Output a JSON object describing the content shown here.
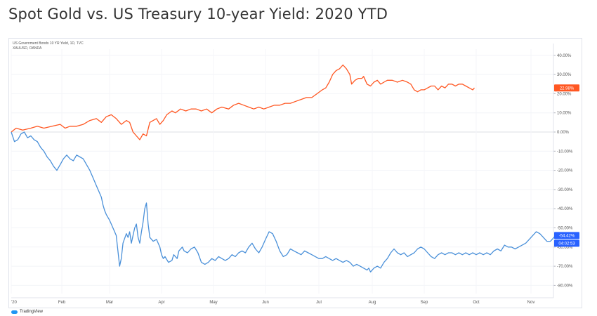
{
  "page": {
    "title": "Spot Gold vs. US Treasury 10-year Yield: 2020 YTD"
  },
  "legend": {
    "line1": "US Government Bonds 10 YR Yield, 1D, TVC",
    "line2": "XAUUSD, OANDA"
  },
  "brand": {
    "label": "TradingView",
    "icon": "tradingview-logo-icon"
  },
  "colors": {
    "gold": "#ff5722",
    "yield": "#4a90d9",
    "grid": "#f0f3fa",
    "axis_text": "#555555"
  },
  "chart_data": {
    "type": "line",
    "title": "Spot Gold vs. US Treasury 10-year Yield: 2020 YTD",
    "xlabel": "",
    "ylabel": "",
    "x_ticks": [
      "'20",
      "Feb",
      "Mar",
      "Apr",
      "May",
      "Jun",
      "Jul",
      "Aug",
      "Sep",
      "Oct",
      "Nov"
    ],
    "y_ticks": [
      "40.00%",
      "30.00%",
      "20.00%",
      "10.00%",
      "0.00%",
      "-10.00%",
      "-20.00%",
      "-30.00%",
      "-40.00%",
      "-50.00%",
      "-60.00%",
      "-70.00%",
      "-80.00%"
    ],
    "ylim": [
      -82,
      44
    ],
    "x_domain_days": [
      0,
      310
    ],
    "grid": true,
    "badges": {
      "gold_last": "22.98%",
      "yield_last": "-54.42%",
      "countdown": "04:02:53"
    },
    "series": [
      {
        "name": "XAUUSD, OANDA",
        "color": "#ff5722",
        "points": [
          [
            0,
            0
          ],
          [
            3,
            2
          ],
          [
            7,
            1
          ],
          [
            12,
            2
          ],
          [
            16,
            3
          ],
          [
            20,
            2
          ],
          [
            25,
            3
          ],
          [
            30,
            4
          ],
          [
            33,
            2
          ],
          [
            36,
            3
          ],
          [
            40,
            3
          ],
          [
            44,
            4
          ],
          [
            48,
            6
          ],
          [
            52,
            7
          ],
          [
            55,
            5
          ],
          [
            58,
            8
          ],
          [
            61,
            9
          ],
          [
            64,
            7
          ],
          [
            67,
            4
          ],
          [
            70,
            6
          ],
          [
            72,
            5
          ],
          [
            74,
            0
          ],
          [
            76,
            -2
          ],
          [
            78,
            -4
          ],
          [
            80,
            -1
          ],
          [
            82,
            -2
          ],
          [
            84,
            5
          ],
          [
            86,
            6
          ],
          [
            88,
            7
          ],
          [
            90,
            4
          ],
          [
            92,
            6
          ],
          [
            94,
            9
          ],
          [
            97,
            11
          ],
          [
            99,
            10
          ],
          [
            102,
            12
          ],
          [
            105,
            11
          ],
          [
            108,
            12
          ],
          [
            111,
            12
          ],
          [
            114,
            11
          ],
          [
            117,
            12
          ],
          [
            120,
            10
          ],
          [
            123,
            12
          ],
          [
            126,
            13
          ],
          [
            130,
            12
          ],
          [
            133,
            14
          ],
          [
            136,
            15
          ],
          [
            139,
            14
          ],
          [
            142,
            13
          ],
          [
            145,
            12
          ],
          [
            148,
            13
          ],
          [
            151,
            12
          ],
          [
            154,
            13
          ],
          [
            157,
            14
          ],
          [
            160,
            14
          ],
          [
            163,
            15
          ],
          [
            166,
            15
          ],
          [
            169,
            16
          ],
          [
            172,
            17
          ],
          [
            175,
            18
          ],
          [
            178,
            18
          ],
          [
            181,
            20
          ],
          [
            184,
            22
          ],
          [
            186,
            23
          ],
          [
            188,
            26
          ],
          [
            190,
            30
          ],
          [
            192,
            32
          ],
          [
            194,
            33
          ],
          [
            196,
            35
          ],
          [
            198,
            33
          ],
          [
            200,
            30
          ],
          [
            201,
            25
          ],
          [
            203,
            27
          ],
          [
            205,
            28
          ],
          [
            207,
            28
          ],
          [
            208,
            29
          ],
          [
            210,
            25
          ],
          [
            212,
            24
          ],
          [
            214,
            26
          ],
          [
            216,
            27
          ],
          [
            218,
            25
          ],
          [
            220,
            26
          ],
          [
            222,
            27
          ],
          [
            225,
            27
          ],
          [
            228,
            26
          ],
          [
            231,
            27
          ],
          [
            234,
            26
          ],
          [
            236,
            25
          ],
          [
            238,
            22
          ],
          [
            240,
            21
          ],
          [
            242,
            22
          ],
          [
            244,
            22
          ],
          [
            246,
            23
          ],
          [
            248,
            24
          ],
          [
            250,
            24
          ],
          [
            252,
            22
          ],
          [
            254,
            24
          ],
          [
            256,
            23
          ],
          [
            258,
            25
          ],
          [
            260,
            25
          ],
          [
            262,
            24
          ],
          [
            264,
            25
          ],
          [
            266,
            25
          ],
          [
            268,
            24
          ],
          [
            270,
            23
          ],
          [
            272,
            22
          ],
          [
            273,
            23
          ]
        ]
      },
      {
        "name": "US Government Bonds 10 YR Yield, 1D, TVC",
        "color": "#4a90d9",
        "points": [
          [
            0,
            0
          ],
          [
            2,
            -5
          ],
          [
            4,
            -4
          ],
          [
            6,
            -1
          ],
          [
            8,
            0
          ],
          [
            10,
            -3
          ],
          [
            12,
            -2
          ],
          [
            14,
            -4
          ],
          [
            16,
            -5
          ],
          [
            18,
            -8
          ],
          [
            20,
            -10
          ],
          [
            22,
            -13
          ],
          [
            24,
            -15
          ],
          [
            26,
            -18
          ],
          [
            28,
            -20
          ],
          [
            30,
            -17
          ],
          [
            32,
            -14
          ],
          [
            34,
            -12
          ],
          [
            36,
            -14
          ],
          [
            38,
            -15
          ],
          [
            40,
            -12
          ],
          [
            42,
            -13
          ],
          [
            44,
            -14
          ],
          [
            46,
            -17
          ],
          [
            48,
            -20
          ],
          [
            50,
            -24
          ],
          [
            52,
            -28
          ],
          [
            53,
            -30
          ],
          [
            55,
            -34
          ],
          [
            56,
            -38
          ],
          [
            57,
            -41
          ],
          [
            58,
            -43
          ],
          [
            60,
            -46
          ],
          [
            61,
            -48
          ],
          [
            62,
            -50
          ],
          [
            63,
            -52
          ],
          [
            64,
            -54
          ],
          [
            65,
            -62
          ],
          [
            66,
            -70
          ],
          [
            67,
            -66
          ],
          [
            68,
            -58
          ],
          [
            70,
            -53
          ],
          [
            71,
            -55
          ],
          [
            72,
            -52
          ],
          [
            73,
            -58
          ],
          [
            74,
            -54
          ],
          [
            75,
            -50
          ],
          [
            76,
            -48
          ],
          [
            77,
            -55
          ],
          [
            78,
            -58
          ],
          [
            79,
            -52
          ],
          [
            80,
            -47
          ],
          [
            81,
            -40
          ],
          [
            82,
            -37
          ],
          [
            83,
            -48
          ],
          [
            84,
            -55
          ],
          [
            86,
            -57
          ],
          [
            88,
            -56
          ],
          [
            90,
            -60
          ],
          [
            91,
            -64
          ],
          [
            92,
            -66
          ],
          [
            93,
            -65
          ],
          [
            95,
            -68
          ],
          [
            97,
            -67
          ],
          [
            98,
            -64
          ],
          [
            100,
            -66
          ],
          [
            101,
            -62
          ],
          [
            103,
            -60
          ],
          [
            104,
            -62
          ],
          [
            106,
            -63
          ],
          [
            108,
            -61
          ],
          [
            110,
            -60
          ],
          [
            112,
            -63
          ],
          [
            114,
            -68
          ],
          [
            116,
            -69
          ],
          [
            118,
            -68
          ],
          [
            120,
            -66
          ],
          [
            122,
            -67
          ],
          [
            124,
            -65
          ],
          [
            126,
            -66
          ],
          [
            128,
            -67
          ],
          [
            130,
            -66
          ],
          [
            132,
            -64
          ],
          [
            134,
            -65
          ],
          [
            136,
            -63
          ],
          [
            138,
            -62
          ],
          [
            140,
            -63
          ],
          [
            142,
            -60
          ],
          [
            144,
            -58
          ],
          [
            146,
            -61
          ],
          [
            148,
            -63
          ],
          [
            150,
            -60
          ],
          [
            152,
            -56
          ],
          [
            154,
            -52
          ],
          [
            156,
            -53
          ],
          [
            158,
            -57
          ],
          [
            160,
            -62
          ],
          [
            162,
            -65
          ],
          [
            164,
            -64
          ],
          [
            166,
            -61
          ],
          [
            168,
            -62
          ],
          [
            170,
            -63
          ],
          [
            172,
            -64
          ],
          [
            174,
            -62
          ],
          [
            176,
            -63
          ],
          [
            178,
            -64
          ],
          [
            180,
            -65
          ],
          [
            182,
            -66
          ],
          [
            184,
            -66
          ],
          [
            186,
            -65
          ],
          [
            188,
            -66
          ],
          [
            190,
            -67
          ],
          [
            192,
            -66
          ],
          [
            194,
            -67
          ],
          [
            196,
            -68
          ],
          [
            198,
            -67
          ],
          [
            200,
            -68
          ],
          [
            202,
            -70
          ],
          [
            204,
            -69
          ],
          [
            206,
            -70
          ],
          [
            208,
            -71
          ],
          [
            210,
            -72
          ],
          [
            211,
            -71
          ],
          [
            212,
            -73
          ],
          [
            214,
            -71
          ],
          [
            216,
            -70
          ],
          [
            218,
            -71
          ],
          [
            220,
            -68
          ],
          [
            222,
            -66
          ],
          [
            224,
            -63
          ],
          [
            226,
            -61
          ],
          [
            228,
            -63
          ],
          [
            230,
            -64
          ],
          [
            232,
            -63
          ],
          [
            234,
            -65
          ],
          [
            236,
            -64
          ],
          [
            238,
            -63
          ],
          [
            240,
            -61
          ],
          [
            242,
            -60
          ],
          [
            244,
            -61
          ],
          [
            246,
            -63
          ],
          [
            248,
            -65
          ],
          [
            250,
            -66
          ],
          [
            252,
            -64
          ],
          [
            254,
            -63
          ],
          [
            256,
            -64
          ],
          [
            258,
            -63
          ],
          [
            260,
            -63
          ],
          [
            262,
            -64
          ],
          [
            264,
            -63
          ],
          [
            266,
            -64
          ],
          [
            268,
            -63
          ],
          [
            270,
            -64
          ],
          [
            272,
            -63
          ],
          [
            274,
            -64
          ],
          [
            276,
            -63
          ],
          [
            278,
            -64
          ],
          [
            280,
            -63
          ],
          [
            282,
            -64
          ],
          [
            284,
            -62
          ],
          [
            286,
            -61
          ],
          [
            288,
            -62
          ],
          [
            290,
            -59
          ],
          [
            292,
            -60
          ],
          [
            294,
            -60
          ],
          [
            296,
            -61
          ],
          [
            298,
            -60
          ],
          [
            300,
            -59
          ],
          [
            302,
            -58
          ],
          [
            304,
            -56
          ],
          [
            306,
            -54
          ],
          [
            308,
            -52
          ],
          [
            310,
            -53
          ],
          [
            312,
            -55
          ],
          [
            314,
            -57
          ],
          [
            316,
            -57
          ],
          [
            318,
            -55
          ],
          [
            320,
            -53
          ],
          [
            322,
            -54
          ]
        ]
      }
    ]
  }
}
